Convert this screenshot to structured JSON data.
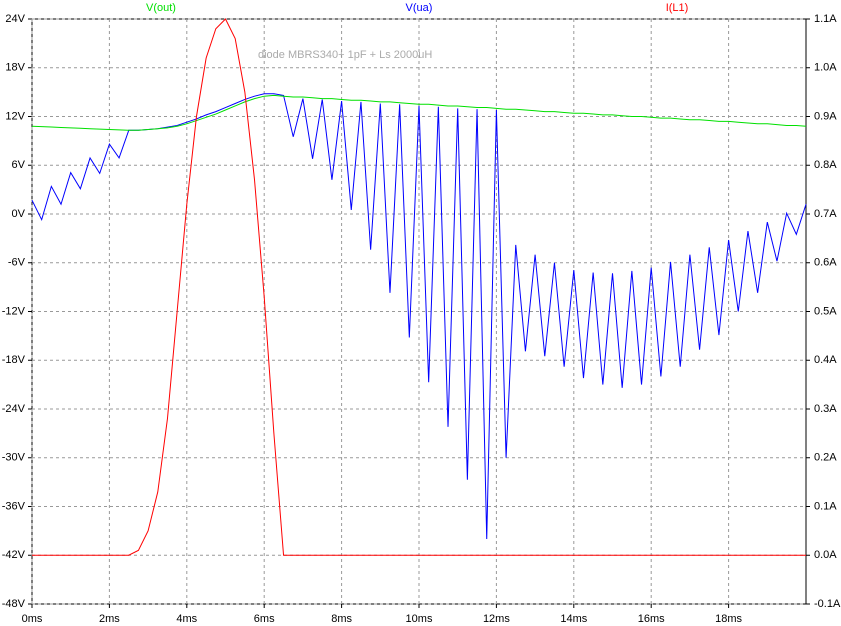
{
  "chart_data": {
    "type": "line",
    "annotation": "diode  MBRS340+ 1pF + Ls 2000uH",
    "legend": "top",
    "grid": true,
    "x": [
      0,
      0.25,
      0.5,
      0.75,
      1,
      1.25,
      1.5,
      1.75,
      2,
      2.25,
      2.5,
      2.75,
      3,
      3.25,
      3.5,
      3.75,
      4,
      4.25,
      4.5,
      4.75,
      5,
      5.25,
      5.5,
      5.75,
      6,
      6.25,
      6.5,
      6.75,
      7,
      7.25,
      7.5,
      7.75,
      8,
      8.25,
      8.5,
      8.75,
      9,
      9.25,
      9.5,
      9.75,
      10,
      10.25,
      10.5,
      10.75,
      11,
      11.25,
      11.5,
      11.75,
      12,
      12.25,
      12.5,
      12.75,
      13,
      13.25,
      13.5,
      13.75,
      14,
      14.25,
      14.5,
      14.75,
      15,
      15.25,
      15.5,
      15.75,
      16,
      16.25,
      16.5,
      16.75,
      17,
      17.25,
      17.5,
      17.75,
      18,
      18.25,
      18.5,
      18.75,
      19,
      19.25,
      19.5,
      19.75,
      20
    ],
    "series": [
      {
        "name": "V(out)",
        "color": "#00e000",
        "values": [
          10.8,
          10.75,
          10.7,
          10.65,
          10.6,
          10.55,
          10.5,
          10.45,
          10.4,
          10.35,
          10.3,
          10.3,
          10.4,
          10.5,
          10.6,
          10.8,
          11.1,
          11.5,
          11.9,
          12.3,
          12.8,
          13.3,
          13.8,
          14.2,
          14.5,
          14.6,
          14.5,
          14.4,
          14.4,
          14.3,
          14.2,
          14.2,
          14.1,
          14.0,
          14.0,
          13.9,
          13.8,
          13.8,
          13.7,
          13.6,
          13.5,
          13.5,
          13.4,
          13.3,
          13.3,
          13.2,
          13.1,
          13.1,
          13.0,
          12.9,
          12.9,
          12.8,
          12.7,
          12.6,
          12.6,
          12.5,
          12.4,
          12.4,
          12.3,
          12.2,
          12.2,
          12.1,
          12.0,
          12.0,
          11.9,
          11.8,
          11.8,
          11.7,
          11.6,
          11.6,
          11.5,
          11.4,
          11.4,
          11.3,
          11.2,
          11.1,
          11.1,
          11.0,
          10.9,
          10.9,
          10.8
        ]
      },
      {
        "name": "V(ua)",
        "color": "#0000ff",
        "values": [
          1.7,
          -0.7,
          3.4,
          1.2,
          5.1,
          3.1,
          6.9,
          5.0,
          8.6,
          6.9,
          10.3,
          10.3,
          10.4,
          10.5,
          10.7,
          10.9,
          11.3,
          11.7,
          12.2,
          12.6,
          13.1,
          13.6,
          14.1,
          14.5,
          14.8,
          14.8,
          14.6,
          9.5,
          14.2,
          6.8,
          14.1,
          4.2,
          13.9,
          0.5,
          13.8,
          -4.4,
          13.6,
          -9.7,
          13.5,
          -15.2,
          13.3,
          -20.7,
          13.2,
          -26.2,
          13.0,
          -32.7,
          12.9,
          -40,
          12.8,
          -30,
          -3.8,
          -16.9,
          -5,
          -17.5,
          -6,
          -18.8,
          -6.9,
          -20.2,
          -7.2,
          -21.0,
          -7.3,
          -21.4,
          -7.0,
          -21.0,
          -6.6,
          -20.0,
          -5.9,
          -18.8,
          -5.0,
          -16.7,
          -4.1,
          -14.9,
          -3.2,
          -12.0,
          -2.1,
          -9.7,
          -1.0,
          -5.8,
          0.1,
          -2.5,
          1.2
        ]
      },
      {
        "name": "I(L1)",
        "color": "#ff0000",
        "axis": "y2",
        "values": [
          0,
          0,
          0,
          0,
          0,
          0,
          0,
          0,
          0,
          0,
          0,
          0.01,
          0.05,
          0.13,
          0.28,
          0.5,
          0.72,
          0.9,
          1.02,
          1.08,
          1.1,
          1.06,
          0.95,
          0.77,
          0.53,
          0.25,
          0,
          0,
          0,
          0,
          0,
          0,
          0,
          0,
          0,
          0,
          0,
          0,
          0,
          0,
          0,
          0,
          0,
          0,
          0,
          0,
          0,
          0,
          0,
          0,
          0,
          0,
          0,
          0,
          0,
          0,
          0,
          0,
          0,
          0,
          0,
          0,
          0,
          0,
          0,
          0,
          0,
          0,
          0,
          0,
          0,
          0,
          0,
          0,
          0,
          0,
          0,
          0,
          0,
          0,
          0
        ]
      }
    ],
    "xlim": [
      0,
      20
    ],
    "xticks": [
      {
        "value": 0,
        "label": "0ms"
      },
      {
        "value": 2,
        "label": "2ms"
      },
      {
        "value": 4,
        "label": "4ms"
      },
      {
        "value": 6,
        "label": "6ms"
      },
      {
        "value": 8,
        "label": "8ms"
      },
      {
        "value": 10,
        "label": "10ms"
      },
      {
        "value": 12,
        "label": "12ms"
      },
      {
        "value": 14,
        "label": "14ms"
      },
      {
        "value": 16,
        "label": "16ms"
      },
      {
        "value": 18,
        "label": "18ms"
      }
    ],
    "ylim": [
      -48,
      24
    ],
    "yticks": [
      {
        "value": 24,
        "label": "24V"
      },
      {
        "value": 18,
        "label": "18V"
      },
      {
        "value": 12,
        "label": "12V"
      },
      {
        "value": 6,
        "label": "6V"
      },
      {
        "value": 0,
        "label": "0V"
      },
      {
        "value": -6,
        "label": "-6V"
      },
      {
        "value": -12,
        "label": "-12V"
      },
      {
        "value": -18,
        "label": "-18V"
      },
      {
        "value": -24,
        "label": "-24V"
      },
      {
        "value": -30,
        "label": "-30V"
      },
      {
        "value": -36,
        "label": "-36V"
      },
      {
        "value": -42,
        "label": "-42V"
      },
      {
        "value": -48,
        "label": "-48V"
      }
    ],
    "y2lim": [
      -0.1,
      1.1
    ],
    "y2ticks": [
      {
        "value": 1.1,
        "label": "1.1A"
      },
      {
        "value": 1.0,
        "label": "1.0A"
      },
      {
        "value": 0.9,
        "label": "0.9A"
      },
      {
        "value": 0.8,
        "label": "0.8A"
      },
      {
        "value": 0.7,
        "label": "0.7A"
      },
      {
        "value": 0.6,
        "label": "0.6A"
      },
      {
        "value": 0.5,
        "label": "0.5A"
      },
      {
        "value": 0.4,
        "label": "0.4A"
      },
      {
        "value": 0.3,
        "label": "0.3A"
      },
      {
        "value": 0.2,
        "label": "0.2A"
      },
      {
        "value": 0.1,
        "label": "0.1A"
      },
      {
        "value": 0.0,
        "label": "0.0A"
      },
      {
        "value": -0.1,
        "label": "-0.1A"
      }
    ]
  }
}
